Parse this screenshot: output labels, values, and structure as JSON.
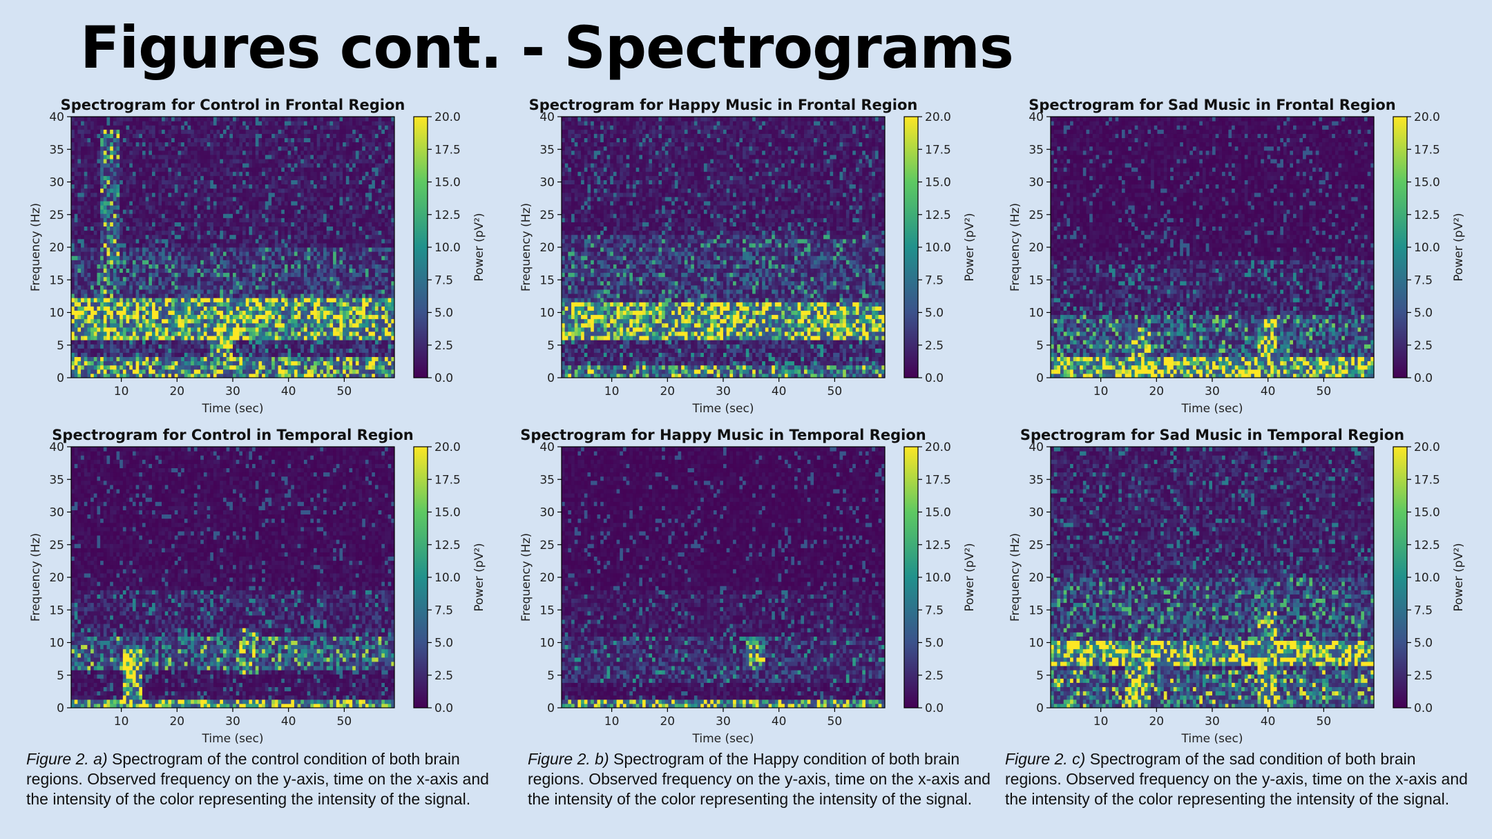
{
  "page": {
    "title": "Figures cont. - Spectrograms"
  },
  "colors": {
    "background": "#d5e3f3",
    "colormap": [
      "#440154",
      "#3b528b",
      "#21918c",
      "#5ec962",
      "#fde725"
    ]
  },
  "chart_data": [
    {
      "type": "heatmap",
      "title": "Spectrogram for Control in Frontal Region",
      "xlabel": "Time (sec)",
      "ylabel": "Frequency (Hz)",
      "colorbar_label": "Power (pV²)",
      "xlim": [
        1,
        59
      ],
      "ylim": [
        0,
        40
      ],
      "clim": [
        0,
        20
      ],
      "x_ticks": [
        10,
        20,
        30,
        40,
        50
      ],
      "y_ticks": [
        0,
        5,
        10,
        15,
        20,
        25,
        30,
        35,
        40
      ],
      "colorbar_ticks": [
        "0.0",
        "2.5",
        "5.0",
        "7.5",
        "10.0",
        "12.5",
        "15.0",
        "17.5",
        "20.0"
      ],
      "bands": [
        {
          "f_low": 0,
          "f_high": 3,
          "power": 14
        },
        {
          "f_low": 6,
          "f_high": 12,
          "power": 17
        },
        {
          "f_low": 12,
          "f_high": 20,
          "power": 5
        }
      ],
      "background_power": 2,
      "hotspots": [
        {
          "t": 8,
          "f_low": 12,
          "f_high": 38,
          "power": 9
        },
        {
          "t": 28,
          "f_low": 3,
          "f_high": 12,
          "power": 18
        }
      ]
    },
    {
      "type": "heatmap",
      "title": "Spectrogram for Happy Music in Frontal Region",
      "xlabel": "Time (sec)",
      "ylabel": "Frequency (Hz)",
      "colorbar_label": "Power (pV²)",
      "xlim": [
        1,
        59
      ],
      "ylim": [
        0,
        40
      ],
      "clim": [
        0,
        20
      ],
      "x_ticks": [
        10,
        20,
        30,
        40,
        50
      ],
      "y_ticks": [
        0,
        5,
        10,
        15,
        20,
        25,
        30,
        35,
        40
      ],
      "colorbar_ticks": [
        "0.0",
        "2.5",
        "5.0",
        "7.5",
        "10.0",
        "12.5",
        "15.0",
        "17.5",
        "20.0"
      ],
      "bands": [
        {
          "f_low": 0,
          "f_high": 2,
          "power": 12
        },
        {
          "f_low": 6,
          "f_high": 11.5,
          "power": 18
        },
        {
          "f_low": 11.5,
          "f_high": 22,
          "power": 5
        }
      ],
      "background_power": 2,
      "hotspots": []
    },
    {
      "type": "heatmap",
      "title": "Spectrogram for Sad Music in Frontal Region",
      "xlabel": "Time (sec)",
      "ylabel": "Frequency (Hz)",
      "colorbar_label": "Power (pV²)",
      "xlim": [
        1,
        59
      ],
      "ylim": [
        0,
        40
      ],
      "clim": [
        0,
        20
      ],
      "x_ticks": [
        10,
        20,
        30,
        40,
        50
      ],
      "y_ticks": [
        0,
        5,
        10,
        15,
        20,
        25,
        30,
        35,
        40
      ],
      "colorbar_ticks": [
        "0.0",
        "2.5",
        "5.0",
        "7.5",
        "10.0",
        "12.5",
        "15.0",
        "17.5",
        "20.0"
      ],
      "bands": [
        {
          "f_low": 0,
          "f_high": 3,
          "power": 19
        },
        {
          "f_low": 3,
          "f_high": 10,
          "power": 7
        },
        {
          "f_low": 10,
          "f_high": 18,
          "power": 3
        }
      ],
      "background_power": 1,
      "hotspots": [
        {
          "t": 17,
          "f_low": 2,
          "f_high": 8,
          "power": 16
        },
        {
          "t": 40,
          "f_low": 2,
          "f_high": 9,
          "power": 18
        }
      ]
    },
    {
      "type": "heatmap",
      "title": "Spectrogram for Control in Temporal Region",
      "xlabel": "Time (sec)",
      "ylabel": "Frequency (Hz)",
      "colorbar_label": "Power (pV²)",
      "xlim": [
        1,
        59
      ],
      "ylim": [
        0,
        40
      ],
      "clim": [
        0,
        20
      ],
      "x_ticks": [
        10,
        20,
        30,
        40,
        50
      ],
      "y_ticks": [
        0,
        5,
        10,
        15,
        20,
        25,
        30,
        35,
        40
      ],
      "colorbar_ticks": [
        "0.0",
        "2.5",
        "5.0",
        "7.5",
        "10.0",
        "12.5",
        "15.0",
        "17.5",
        "20.0"
      ],
      "bands": [
        {
          "f_low": 0,
          "f_high": 1.5,
          "power": 17
        },
        {
          "f_low": 6,
          "f_high": 11,
          "power": 8
        },
        {
          "f_low": 11,
          "f_high": 18,
          "power": 3
        }
      ],
      "background_power": 1,
      "hotspots": [
        {
          "t": 12,
          "f_low": 0,
          "f_high": 9,
          "power": 19
        },
        {
          "t": 33,
          "f_low": 5,
          "f_high": 12,
          "power": 12
        }
      ]
    },
    {
      "type": "heatmap",
      "title": "Spectrogram for Happy Music in Temporal Region",
      "xlabel": "Time (sec)",
      "ylabel": "Frequency (Hz)",
      "colorbar_label": "Power (pV²)",
      "xlim": [
        1,
        59
      ],
      "ylim": [
        0,
        40
      ],
      "clim": [
        0,
        20
      ],
      "x_ticks": [
        10,
        20,
        30,
        40,
        50
      ],
      "y_ticks": [
        0,
        5,
        10,
        15,
        20,
        25,
        30,
        35,
        40
      ],
      "colorbar_ticks": [
        "0.0",
        "2.5",
        "5.0",
        "7.5",
        "10.0",
        "12.5",
        "15.0",
        "17.5",
        "20.0"
      ],
      "bands": [
        {
          "f_low": 0,
          "f_high": 1.5,
          "power": 16
        },
        {
          "f_low": 4,
          "f_high": 11,
          "power": 4
        },
        {
          "f_low": 11,
          "f_high": 18,
          "power": 2
        }
      ],
      "background_power": 0.8,
      "hotspots": [
        {
          "t": 36,
          "f_low": 6,
          "f_high": 11,
          "power": 14
        }
      ]
    },
    {
      "type": "heatmap",
      "title": "Spectrogram for Sad Music in Temporal Region",
      "xlabel": "Time (sec)",
      "ylabel": "Frequency (Hz)",
      "colorbar_label": "Power (pV²)",
      "xlim": [
        1,
        59
      ],
      "ylim": [
        0,
        40
      ],
      "clim": [
        0,
        20
      ],
      "x_ticks": [
        10,
        20,
        30,
        40,
        50
      ],
      "y_ticks": [
        0,
        5,
        10,
        15,
        20,
        25,
        30,
        35,
        40
      ],
      "colorbar_ticks": [
        "0.0",
        "2.5",
        "5.0",
        "7.5",
        "10.0",
        "12.5",
        "15.0",
        "17.5",
        "20.0"
      ],
      "bands": [
        {
          "f_low": 0,
          "f_high": 6,
          "power": 9
        },
        {
          "f_low": 6.5,
          "f_high": 10.5,
          "power": 19
        },
        {
          "f_low": 10.5,
          "f_high": 20,
          "power": 6
        }
      ],
      "background_power": 2.5,
      "hotspots": [
        {
          "t": 17,
          "f_low": 0,
          "f_high": 7,
          "power": 18
        },
        {
          "t": 40,
          "f_low": 0,
          "f_high": 15,
          "power": 17
        }
      ]
    }
  ],
  "captions": [
    {
      "fig": "Figure 2. a)",
      "text": " Spectrogram of the control condition of both brain regions. Observed frequency on the y-axis, time on the x-axis and the intensity of the color representing the intensity of the signal."
    },
    {
      "fig": "Figure 2. b)",
      "text": " Spectrogram of the Happy condition of both brain regions. Observed frequency on the y-axis, time on the x-axis and the intensity of the color representing the intensity of the signal."
    },
    {
      "fig": "Figure 2. c)",
      "text": " Spectrogram of the sad condition of both brain regions. Observed frequency on the y-axis, time on the x-axis and the intensity of the color representing the intensity of the signal."
    }
  ]
}
